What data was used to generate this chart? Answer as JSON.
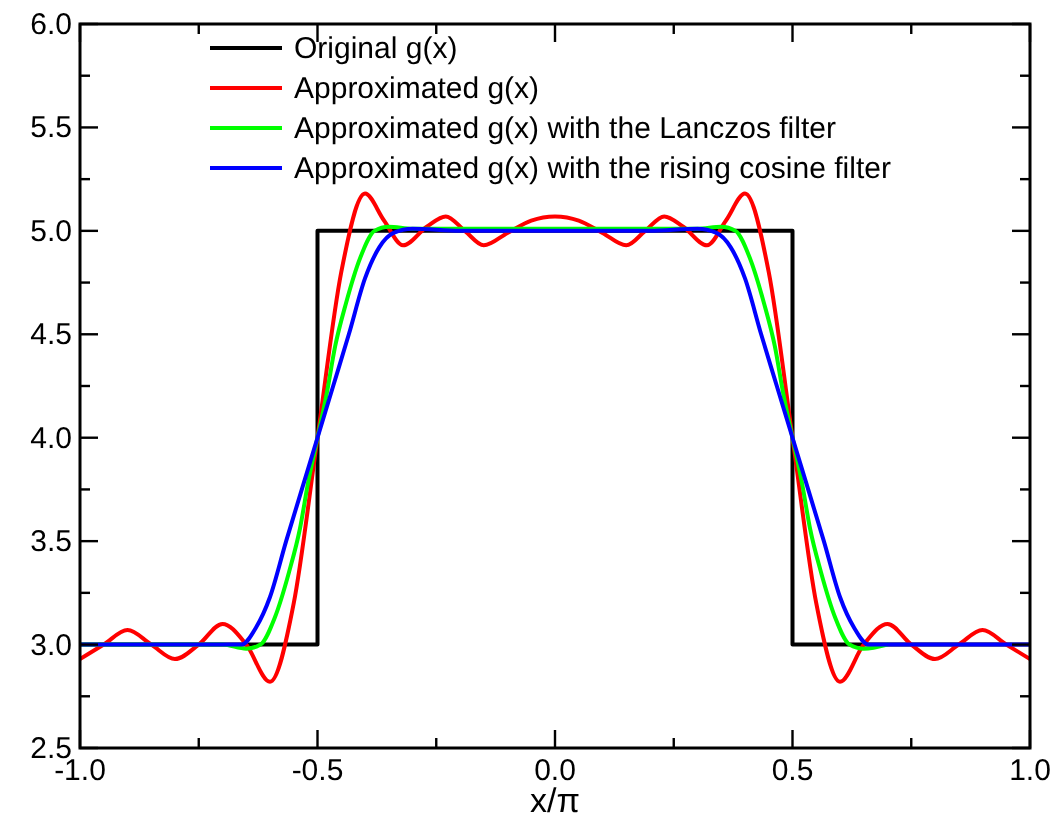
{
  "chart_data": {
    "type": "line",
    "xlabel": "x/π",
    "xlim": [
      -1,
      1
    ],
    "ylim": [
      2.5,
      6
    ],
    "xticks": [
      {
        "value": -1,
        "label": "-1.0"
      },
      {
        "value": -0.75,
        "label": null
      },
      {
        "value": -0.5,
        "label": "-0.5"
      },
      {
        "value": -0.25,
        "label": null
      },
      {
        "value": 0,
        "label": "0.0"
      },
      {
        "value": 0.25,
        "label": null
      },
      {
        "value": 0.5,
        "label": "0.5"
      },
      {
        "value": 0.75,
        "label": null
      },
      {
        "value": 1,
        "label": "1.0"
      }
    ],
    "yticks": [
      {
        "value": 2.5,
        "label": "2.5"
      },
      {
        "value": 2.75,
        "label": null
      },
      {
        "value": 3,
        "label": "3.0"
      },
      {
        "value": 3.25,
        "label": null
      },
      {
        "value": 3.5,
        "label": "3.5"
      },
      {
        "value": 3.75,
        "label": null
      },
      {
        "value": 4,
        "label": "4.0"
      },
      {
        "value": 4.25,
        "label": null
      },
      {
        "value": 4.5,
        "label": "4.5"
      },
      {
        "value": 4.75,
        "label": null
      },
      {
        "value": 5,
        "label": "5.0"
      },
      {
        "value": 5.25,
        "label": null
      },
      {
        "value": 5.5,
        "label": "5.5"
      },
      {
        "value": 5.75,
        "label": null
      },
      {
        "value": 6,
        "label": "6.0"
      }
    ],
    "grid": false,
    "legend": "top",
    "marker": "none",
    "line_style": "solid",
    "series": [
      {
        "name": "Original g(x)",
        "color": "#000000",
        "x": [
          -1,
          -0.5,
          -0.5,
          0.5,
          0.5,
          1
        ],
        "values": [
          3,
          3,
          5,
          5,
          3,
          3
        ]
      },
      {
        "name": "Approximated g(x)",
        "color": "#ff0000",
        "x": [
          -1,
          -0.95,
          -0.9,
          -0.85,
          -0.8,
          -0.75,
          -0.7,
          -0.65,
          -0.6,
          -0.55,
          -0.5,
          -0.45,
          -0.4,
          -0.36,
          -0.32,
          -0.27,
          -0.23,
          -0.19,
          -0.15,
          -0.1,
          -0.05,
          0,
          0.05,
          0.1,
          0.15,
          0.19,
          0.23,
          0.27,
          0.32,
          0.36,
          0.4,
          0.45,
          0.5,
          0.55,
          0.6,
          0.65,
          0.7,
          0.75,
          0.8,
          0.85,
          0.9,
          0.95,
          1
        ],
        "values": [
          2.93,
          3.0,
          3.07,
          3.0,
          2.93,
          3.0,
          3.1,
          3.0,
          2.82,
          3.2,
          4.0,
          4.8,
          5.18,
          5.05,
          4.93,
          5.02,
          5.07,
          5.0,
          4.93,
          4.99,
          5.05,
          5.07,
          5.05,
          4.99,
          4.93,
          5.0,
          5.07,
          5.02,
          4.93,
          5.05,
          5.18,
          4.8,
          4.0,
          3.2,
          2.82,
          3.0,
          3.1,
          3.0,
          2.93,
          3.0,
          3.07,
          3.0,
          2.93
        ]
      },
      {
        "name": "Approximated g(x) with the Lanczos filter",
        "color": "#00ff00",
        "x": [
          -1,
          -0.7,
          -0.65,
          -0.62,
          -0.59,
          -0.56,
          -0.537,
          -0.52,
          -0.5,
          -0.48,
          -0.463,
          -0.44,
          -0.41,
          -0.38,
          -0.35,
          -0.3,
          0.3,
          0.35,
          0.38,
          0.41,
          0.44,
          0.463,
          0.48,
          0.5,
          0.52,
          0.537,
          0.56,
          0.59,
          0.62,
          0.65,
          0.7
        ],
        "values": [
          3,
          3.0,
          2.98,
          3.0,
          3.13,
          3.35,
          3.56,
          3.78,
          4.0,
          4.22,
          4.44,
          4.65,
          4.87,
          5.0,
          5.02,
          5.01,
          5.01,
          5.02,
          5.0,
          4.87,
          4.65,
          4.44,
          4.22,
          4.0,
          3.78,
          3.56,
          3.35,
          3.13,
          3.0,
          2.98,
          3.0
        ]
      },
      {
        "name": "Approximated g(x) with the rising cosine filter",
        "color": "#0000ff",
        "x": [
          -1,
          -0.7,
          -0.66,
          -0.63,
          -0.6,
          -0.566,
          -0.533,
          -0.5,
          -0.467,
          -0.434,
          -0.4,
          -0.37,
          -0.34,
          -0.3,
          -0.2,
          0,
          0.2,
          0.3,
          0.34,
          0.37,
          0.4,
          0.434,
          0.467,
          0.5,
          0.533,
          0.566,
          0.6,
          0.63,
          0.66,
          0.7,
          1
        ],
        "values": [
          3,
          3.0,
          3.0,
          3.08,
          3.23,
          3.5,
          3.75,
          4.0,
          4.25,
          4.5,
          4.77,
          4.92,
          4.99,
          5.01,
          5.0,
          5.0,
          5.0,
          5.01,
          4.99,
          4.92,
          4.77,
          4.5,
          4.25,
          4.0,
          3.75,
          3.5,
          3.23,
          3.08,
          3.0,
          3.0,
          3
        ]
      }
    ]
  }
}
